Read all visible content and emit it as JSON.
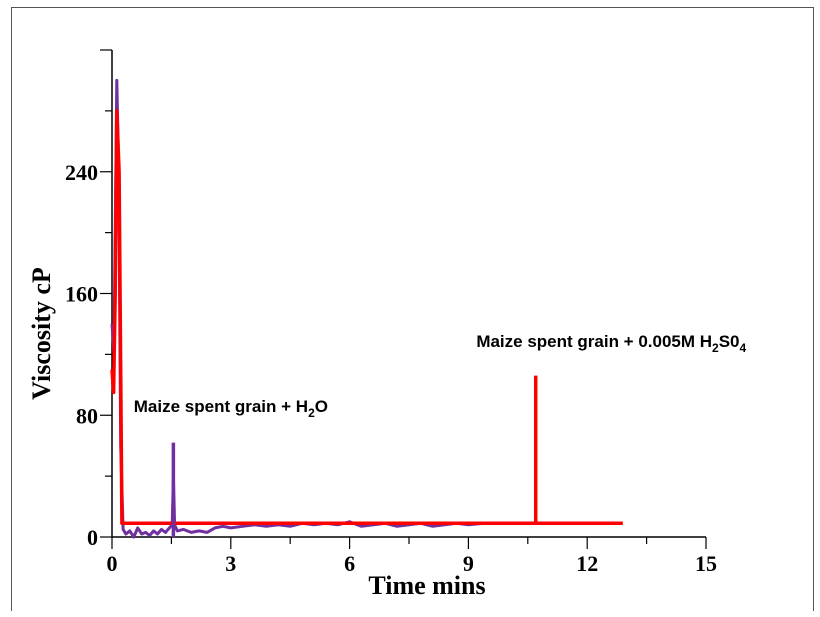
{
  "chart_data": {
    "type": "line",
    "xlabel": "Time mins",
    "ylabel": "Viscosity cP",
    "xlim": [
      0,
      15
    ],
    "ylim": [
      0,
      320
    ],
    "x_ticks": [
      0,
      3,
      6,
      9,
      12,
      15
    ],
    "x_tick_labels": [
      "0",
      "3",
      "6",
      "9",
      "12",
      "15"
    ],
    "y_ticks": [
      0,
      80,
      160,
      240
    ],
    "y_tick_labels": [
      "0",
      "80",
      "160",
      "240"
    ],
    "grid": false,
    "series": [
      {
        "color": "#7030a0",
        "points": [
          [
            0.0,
            140
          ],
          [
            0.05,
            120
          ],
          [
            0.08,
            200
          ],
          [
            0.12,
            300
          ],
          [
            0.17,
            240
          ],
          [
            0.22,
            60
          ],
          [
            0.28,
            5
          ],
          [
            0.35,
            2
          ],
          [
            0.45,
            4
          ],
          [
            0.55,
            0
          ],
          [
            0.65,
            6
          ],
          [
            0.75,
            2
          ],
          [
            0.85,
            3
          ],
          [
            0.95,
            1
          ],
          [
            1.05,
            4
          ],
          [
            1.15,
            2
          ],
          [
            1.25,
            5
          ],
          [
            1.35,
            3
          ],
          [
            1.45,
            6
          ],
          [
            1.52,
            8
          ],
          [
            1.55,
            40
          ],
          [
            1.58,
            8
          ],
          [
            1.65,
            4
          ],
          [
            1.8,
            5
          ],
          [
            2.0,
            3
          ],
          [
            2.2,
            4
          ],
          [
            2.4,
            3
          ],
          [
            2.6,
            6
          ],
          [
            2.8,
            7
          ],
          [
            3.0,
            6
          ],
          [
            3.3,
            7
          ],
          [
            3.6,
            8
          ],
          [
            3.9,
            7
          ],
          [
            4.2,
            8
          ],
          [
            4.5,
            7
          ],
          [
            4.8,
            9
          ],
          [
            5.1,
            8
          ],
          [
            5.4,
            9
          ],
          [
            5.7,
            8
          ],
          [
            6.0,
            10
          ],
          [
            6.3,
            7
          ],
          [
            6.6,
            8
          ],
          [
            6.9,
            9
          ],
          [
            7.2,
            7
          ],
          [
            7.5,
            8
          ],
          [
            7.8,
            9
          ],
          [
            8.1,
            7
          ],
          [
            8.4,
            8
          ],
          [
            8.7,
            9
          ],
          [
            9.0,
            8
          ],
          [
            9.4,
            9
          ]
        ]
      },
      {
        "color": "#ff0000",
        "points": [
          [
            0.0,
            110
          ],
          [
            0.04,
            95
          ],
          [
            0.08,
            160
          ],
          [
            0.12,
            280
          ],
          [
            0.18,
            240
          ],
          [
            0.22,
            110
          ],
          [
            0.25,
            9
          ],
          [
            1.0,
            9
          ],
          [
            5.0,
            9
          ],
          [
            10.7,
            9
          ],
          [
            10.7,
            9
          ],
          [
            12.9,
            9
          ]
        ]
      }
    ],
    "annotations": [
      {
        "label_parts": [
          {
            "t": "Maize spent grain + H"
          },
          {
            "t": "2",
            "sub": true
          },
          {
            "t": "O"
          }
        ],
        "at": [
          0.55,
          82
        ],
        "marker": {
          "x": 1.55,
          "y_from": 0,
          "y_to": 62,
          "color": "#7030a0"
        }
      },
      {
        "label_parts": [
          {
            "t": "Maize spent grain + 0.005M H"
          },
          {
            "t": "2",
            "sub": true
          },
          {
            "t": "S0"
          },
          {
            "t": "4",
            "sub": true
          }
        ],
        "at": [
          9.2,
          125
        ],
        "marker": {
          "x": 10.7,
          "y_from": 10,
          "y_to": 106,
          "color": "#ff0000"
        }
      }
    ]
  }
}
